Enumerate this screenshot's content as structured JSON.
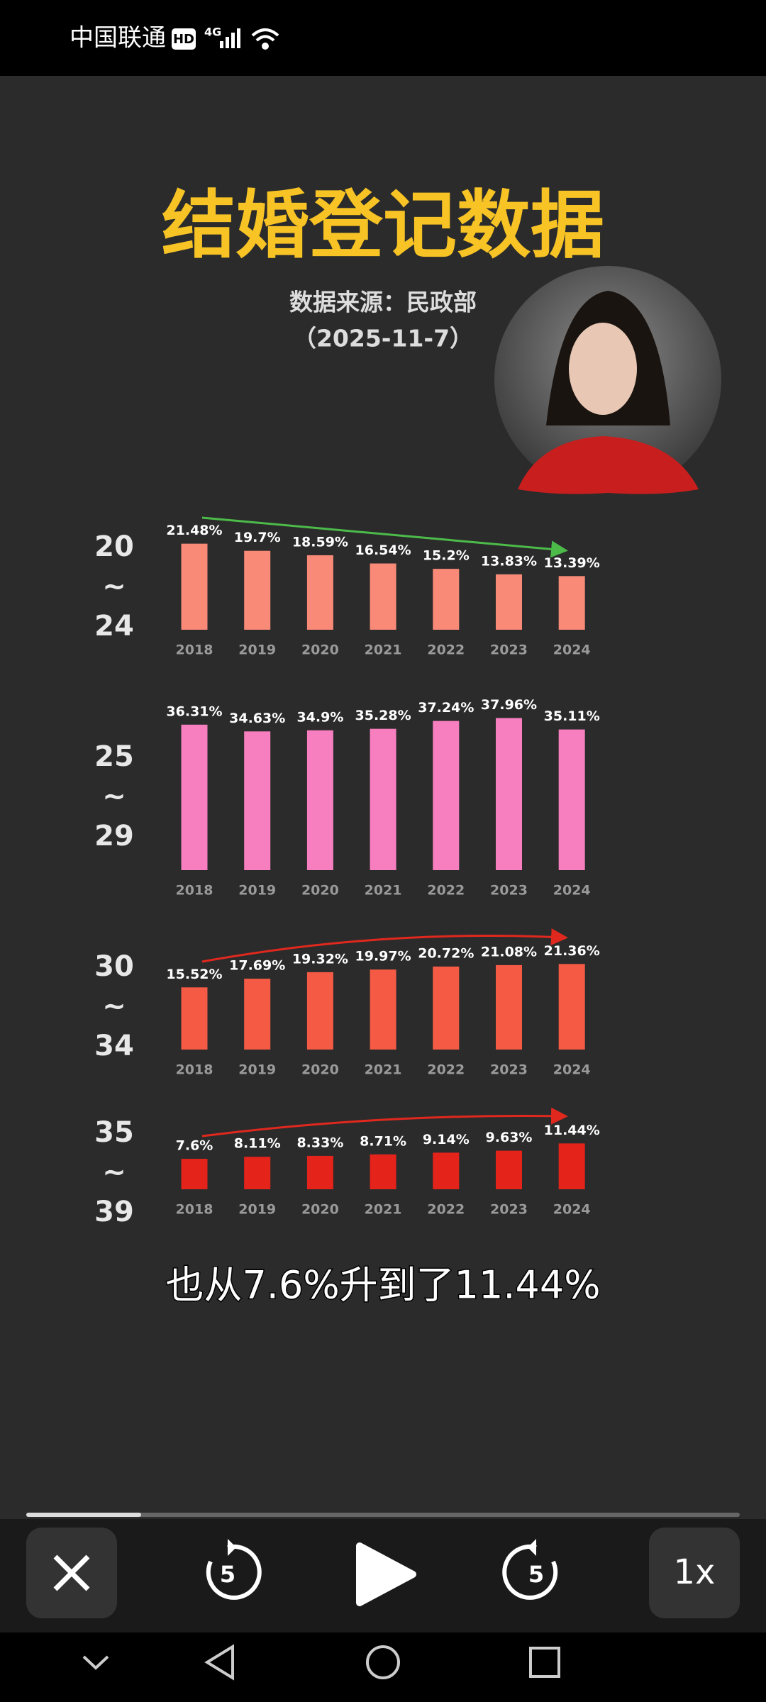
{
  "status_bar": {
    "carrier": "中国联通",
    "badges": [
      "HD",
      "4G"
    ]
  },
  "video": {
    "title": "结婚登记数据",
    "source": "数据来源：民政部",
    "date": "（2025-11-7）",
    "caption": "也从7.6%升到了11.44%"
  },
  "chart_data": [
    {
      "type": "bar",
      "label_lines": [
        "20",
        "~",
        "24"
      ],
      "categories": [
        "2018",
        "2019",
        "2020",
        "2021",
        "2022",
        "2023",
        "2024"
      ],
      "values": [
        21.48,
        19.7,
        18.59,
        16.54,
        15.2,
        13.83,
        13.39
      ],
      "value_labels": [
        "21.48%",
        "19.7%",
        "18.59%",
        "16.54%",
        "15.2%",
        "13.83%",
        "13.39%"
      ],
      "color": "#f98a78",
      "trend_arrow_color": "#4cbb4a"
    },
    {
      "type": "bar",
      "label_lines": [
        "25",
        "~",
        "29"
      ],
      "categories": [
        "2018",
        "2019",
        "2020",
        "2021",
        "2022",
        "2023",
        "2024"
      ],
      "values": [
        36.31,
        34.63,
        34.9,
        35.28,
        37.24,
        37.96,
        35.11
      ],
      "value_labels": [
        "36.31%",
        "34.63%",
        "34.9%",
        "35.28%",
        "37.24%",
        "37.96%",
        "35.11%"
      ],
      "color": "#f77fc0"
    },
    {
      "type": "bar",
      "label_lines": [
        "30",
        "~",
        "34"
      ],
      "categories": [
        "2018",
        "2019",
        "2020",
        "2021",
        "2022",
        "2023",
        "2024"
      ],
      "values": [
        15.52,
        17.69,
        19.32,
        19.97,
        20.72,
        21.08,
        21.36
      ],
      "value_labels": [
        "15.52%",
        "17.69%",
        "19.32%",
        "19.97%",
        "20.72%",
        "21.08%",
        "21.36%"
      ],
      "color": "#f55a45",
      "trend_arrow_color": "#e0281e"
    },
    {
      "type": "bar",
      "label_lines": [
        "35",
        "~",
        "39"
      ],
      "categories": [
        "2018",
        "2019",
        "2020",
        "2021",
        "2022",
        "2023",
        "2024"
      ],
      "values": [
        7.6,
        8.11,
        8.33,
        8.71,
        9.14,
        9.63,
        11.44
      ],
      "value_labels": [
        "7.6%",
        "8.11%",
        "8.33%",
        "8.71%",
        "9.14%",
        "9.63%",
        "11.44%"
      ],
      "color": "#e4231b",
      "trend_arrow_color": "#e0281e"
    }
  ],
  "controls": {
    "rewind": "5",
    "forward": "5",
    "speed": "1x"
  }
}
